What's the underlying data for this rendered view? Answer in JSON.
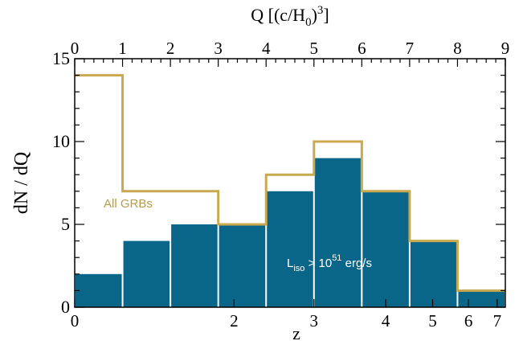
{
  "chart_data": {
    "type": "bar",
    "title": "",
    "xlabel_top": "Q  [(c/H",
    "xlabel_top_sub": "0",
    "xlabel_top_close": ")",
    "xlabel_top_sup": "3",
    "xlabel_top_end": "]",
    "xlabel_bottom": "z",
    "ylabel": "dN / dQ",
    "q_range": [
      0,
      9
    ],
    "ylim": [
      0,
      15
    ],
    "q_ticks": [
      "0",
      "1",
      "2",
      "3",
      "4",
      "5",
      "6",
      "7",
      "8",
      "9"
    ],
    "y_ticks": [
      "0",
      "5",
      "10",
      "15"
    ],
    "z_ticks": [
      {
        "label": "0",
        "q": 0.0
      },
      {
        "label": "2",
        "q": 3.33
      },
      {
        "label": "3",
        "q": 5.0
      },
      {
        "label": "4",
        "q": 6.5
      },
      {
        "label": "5",
        "q": 7.48
      },
      {
        "label": "6",
        "q": 8.23
      },
      {
        "label": "7",
        "q": 8.83
      }
    ],
    "bin_edges_q": [
      0,
      1,
      2,
      3,
      4,
      5,
      6,
      7,
      8,
      9
    ],
    "series": [
      {
        "name": "L",
        "name_sub": "iso",
        "name_mid": " > 10",
        "name_sup": "51",
        "name_end": " erg/s",
        "render": "bars",
        "values": [
          2,
          4,
          5,
          5,
          7,
          9,
          7,
          4,
          1
        ]
      },
      {
        "name": "All GRBs",
        "render": "step",
        "values": [
          14,
          7,
          7,
          5,
          8,
          10,
          7,
          4,
          1
        ]
      }
    ],
    "colors": {
      "bars": "#0a6688",
      "bar_separator": "#ffffff",
      "step_line": "#c9a94f",
      "step_label": "#b39a4e",
      "bar_label": "#ffffff",
      "axis": "#000000"
    },
    "grid": false
  }
}
